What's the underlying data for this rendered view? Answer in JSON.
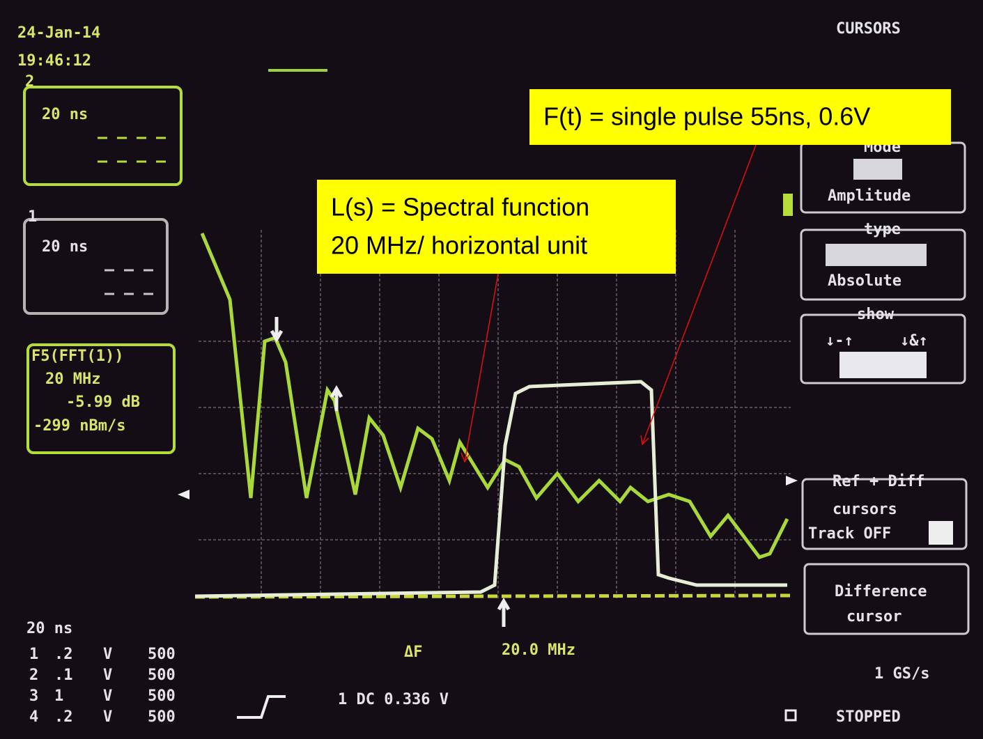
{
  "status": {
    "date": "24-Jan-14",
    "time": "19:46:12",
    "menu_title": "CURSORS"
  },
  "left_panels": [
    {
      "channel": "2",
      "timebase": "20 ns"
    },
    {
      "channel": "1",
      "timebase": "20 ns"
    },
    {
      "function": "F5(FFT(1))",
      "scale": "20 MHz",
      "level": "-5.99 dB",
      "rate": "-299 nBm/s"
    }
  ],
  "annotations": {
    "pulse": "F(t) = single pulse 55ns, 0.6V",
    "spectrum": [
      "L(s) = Spectral function",
      "20 MHz/ horizontal unit"
    ]
  },
  "right_menu": {
    "mode": {
      "title": "Mode",
      "value": "Amplitude"
    },
    "type": {
      "title": "type",
      "value": "Absolute"
    },
    "show": {
      "title": "show",
      "options": [
        "↓-↑",
        "↓&↑"
      ]
    },
    "ref_diff": [
      "Ref + Diff",
      "cursors",
      "Track OFF"
    ],
    "difference": [
      "Difference",
      "cursor"
    ]
  },
  "bottom": {
    "timebase": "20 ns",
    "channels": [
      [
        "1",
        ".2",
        "V",
        "500"
      ],
      [
        "2",
        ".1",
        "V",
        "500"
      ],
      [
        "3",
        "1",
        "V",
        "500"
      ],
      [
        "4",
        ".2",
        "V",
        "500"
      ]
    ],
    "delta_label": "ΔF",
    "delta_value": "20.0 MHz",
    "trigger": "1 DC 0.336 V",
    "sample_rate": "1 GS/s",
    "state": "STOPPED"
  }
}
